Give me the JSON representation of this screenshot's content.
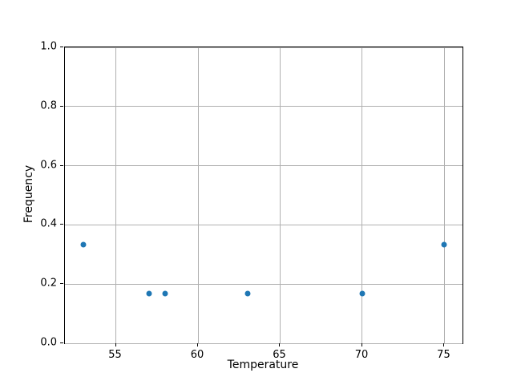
{
  "chart_data": {
    "type": "scatter",
    "title": "",
    "xlabel": "Temperature",
    "ylabel": "Frequency",
    "xlim": [
      51.9,
      76.1
    ],
    "ylim": [
      0.0,
      1.0
    ],
    "xticks": [
      55,
      60,
      65,
      70,
      75
    ],
    "xtick_labels": [
      "55",
      "60",
      "65",
      "70",
      "75"
    ],
    "yticks": [
      0.0,
      0.2,
      0.4,
      0.6,
      0.8,
      1.0
    ],
    "ytick_labels": [
      "0.0",
      "0.2",
      "0.4",
      "0.6",
      "0.8",
      "1.0"
    ],
    "grid": true,
    "grid_color": "#b0b0b0",
    "marker_color": "#1f77b4",
    "points": [
      {
        "x": 53,
        "y": 0.333
      },
      {
        "x": 57,
        "y": 0.167
      },
      {
        "x": 58,
        "y": 0.167
      },
      {
        "x": 63,
        "y": 0.167
      },
      {
        "x": 70,
        "y": 0.167
      },
      {
        "x": 75,
        "y": 0.333
      }
    ]
  }
}
